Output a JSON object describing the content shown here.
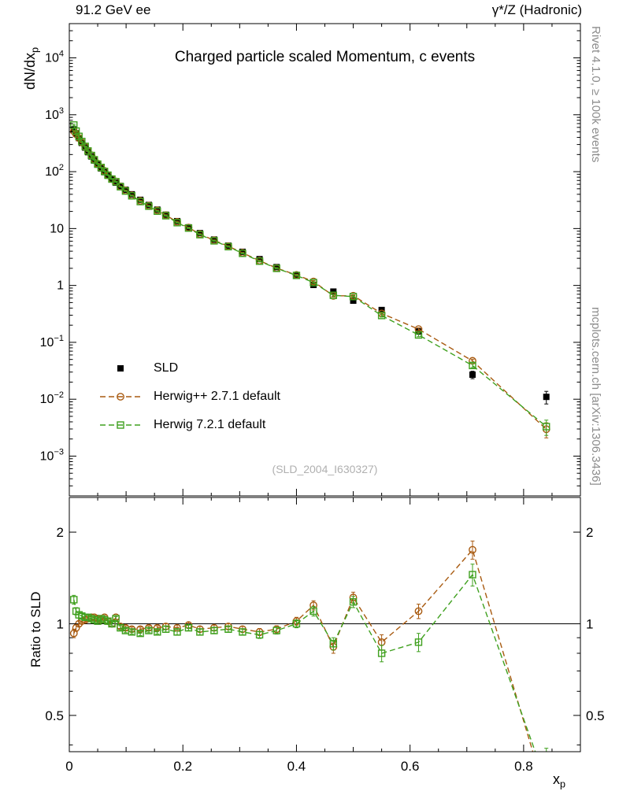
{
  "header": {
    "left": "91.2 GeV ee",
    "right": "γ*/Z (Hadronic)"
  },
  "labels": {
    "ylabel_main": {
      "text": "dN/dx",
      "sub": "p"
    },
    "ylabel_ratio": "Ratio to SLD",
    "xlabel": {
      "text": "x",
      "sub": "p"
    },
    "watermark": "(SLD_2004_I630327)",
    "rivet": "Rivet 4.1.0, ≥ 100k events",
    "mcplots": "mcplots.cern.ch [arXiv:1306.3436]"
  },
  "chart_data": {
    "type": "line",
    "title": "Charged particle scaled Momentum, c events",
    "xlabel": "x_p",
    "ylabel_main": "dN/dx_p",
    "ylabel_ratio": "Ratio to SLD",
    "x_range": [
      0,
      0.9
    ],
    "y_range_main": [
      0.0002,
      40000
    ],
    "y_range_ratio": [
      0.38,
      2.6
    ],
    "y_scale": "log",
    "ratio_y_scale": "log",
    "grid": false,
    "legend_position": "upper-left-inside",
    "x_ticks": [
      0,
      0.2,
      0.4,
      0.6,
      0.8
    ],
    "y_ticks_main_exp": [
      4,
      3,
      2,
      1,
      0,
      -1,
      -2,
      -3
    ],
    "y_ticks_ratio": [
      2,
      1,
      0.5
    ],
    "x": [
      0.008,
      0.012,
      0.017,
      0.022,
      0.028,
      0.033,
      0.039,
      0.044,
      0.05,
      0.056,
      0.062,
      0.068,
      0.075,
      0.082,
      0.09,
      0.099,
      0.11,
      0.125,
      0.14,
      0.155,
      0.17,
      0.19,
      0.21,
      0.23,
      0.255,
      0.28,
      0.305,
      0.335,
      0.365,
      0.4,
      0.43,
      0.465,
      0.5,
      0.55,
      0.615,
      0.71,
      0.84
    ],
    "series": [
      {
        "name": "SLD",
        "type": "data",
        "marker": "filled-square",
        "color": "#000000",
        "values": [
          550,
          470,
          390,
          320,
          265,
          220,
          185,
          157,
          133,
          114,
          98,
          85,
          74,
          64,
          56,
          48,
          40,
          32,
          26,
          21.5,
          17.5,
          13.5,
          10.5,
          8.3,
          6.4,
          5.0,
          3.9,
          2.9,
          2.1,
          1.5,
          1.02,
          0.78,
          0.54,
          0.37,
          0.155,
          0.027,
          0.011
        ],
        "err_frac": [
          0.04,
          0.03,
          0.03,
          0.025,
          0.02,
          0.02,
          0.02,
          0.02,
          0.02,
          0.02,
          0.02,
          0.02,
          0.02,
          0.02,
          0.02,
          0.02,
          0.02,
          0.02,
          0.02,
          0.02,
          0.02,
          0.02,
          0.02,
          0.02,
          0.025,
          0.025,
          0.03,
          0.03,
          0.03,
          0.035,
          0.04,
          0.04,
          0.05,
          0.06,
          0.08,
          0.15,
          0.25
        ]
      },
      {
        "name": "Herwig++ 2.7.1 default",
        "type": "mc",
        "marker": "open-circle",
        "color": "#a85a10",
        "ratio": [
          0.93,
          0.97,
          1.0,
          1.02,
          1.03,
          1.04,
          1.05,
          1.05,
          1.04,
          1.03,
          1.05,
          1.02,
          1.0,
          1.05,
          0.98,
          0.97,
          0.96,
          0.96,
          0.97,
          0.97,
          0.98,
          0.97,
          0.99,
          0.96,
          0.97,
          0.98,
          0.96,
          0.94,
          0.96,
          1.02,
          1.15,
          0.84,
          1.22,
          0.87,
          1.1,
          1.75,
          0.27
        ],
        "ratio_err": [
          0.03,
          0.025,
          0.02,
          0.02,
          0.015,
          0.015,
          0.015,
          0.015,
          0.015,
          0.015,
          0.015,
          0.015,
          0.015,
          0.015,
          0.015,
          0.015,
          0.015,
          0.015,
          0.015,
          0.015,
          0.02,
          0.02,
          0.02,
          0.02,
          0.02,
          0.02,
          0.02,
          0.025,
          0.025,
          0.03,
          0.04,
          0.04,
          0.05,
          0.05,
          0.06,
          0.12,
          0.08
        ]
      },
      {
        "name": "Herwig 7.2.1 default",
        "type": "mc",
        "marker": "open-square",
        "color": "#3fa01e",
        "ratio": [
          1.2,
          1.1,
          1.07,
          1.06,
          1.05,
          1.05,
          1.04,
          1.03,
          1.02,
          1.04,
          1.03,
          1.02,
          1.0,
          1.04,
          0.97,
          0.95,
          0.94,
          0.93,
          0.95,
          0.94,
          0.96,
          0.94,
          0.97,
          0.94,
          0.95,
          0.96,
          0.94,
          0.92,
          0.95,
          1.0,
          1.1,
          0.86,
          1.18,
          0.8,
          0.87,
          1.45,
          0.3
        ],
        "ratio_err": [
          0.04,
          0.03,
          0.025,
          0.02,
          0.02,
          0.015,
          0.015,
          0.015,
          0.015,
          0.015,
          0.015,
          0.015,
          0.015,
          0.015,
          0.015,
          0.015,
          0.015,
          0.015,
          0.015,
          0.015,
          0.02,
          0.02,
          0.02,
          0.02,
          0.02,
          0.02,
          0.02,
          0.025,
          0.025,
          0.03,
          0.04,
          0.04,
          0.05,
          0.05,
          0.06,
          0.12,
          0.09
        ]
      }
    ]
  }
}
